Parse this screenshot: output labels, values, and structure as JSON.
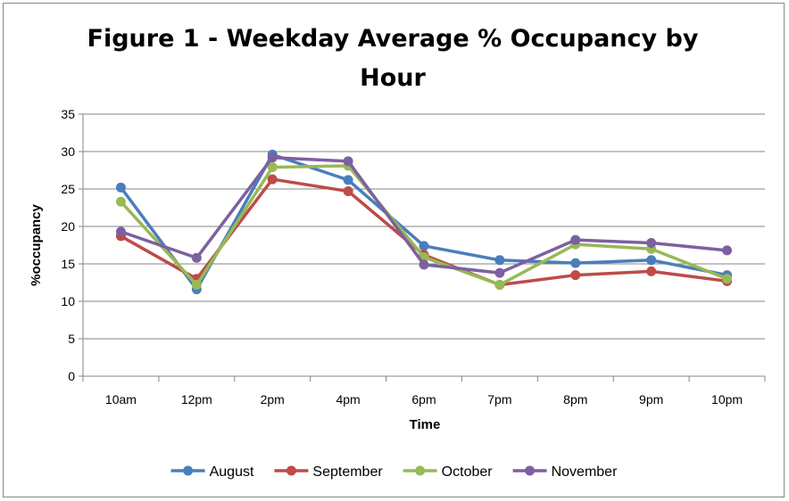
{
  "chart_data": {
    "type": "line",
    "title": "Figure 1 - Weekday Average % Occupancy by Hour",
    "xlabel": "Time",
    "ylabel": "%occupancy",
    "ylim": [
      0,
      35
    ],
    "yticks": [
      0,
      5,
      10,
      15,
      20,
      25,
      30,
      35
    ],
    "grid": true,
    "legend_position": "bottom",
    "categories": [
      "10am",
      "12pm",
      "2pm",
      "4pm",
      "6pm",
      "7pm",
      "8pm",
      "9pm",
      "10pm"
    ],
    "series": [
      {
        "name": "August",
        "color": "#4a7ebb",
        "values": [
          25.2,
          11.6,
          29.6,
          26.2,
          17.4,
          15.5,
          15.1,
          15.5,
          13.5
        ]
      },
      {
        "name": "September",
        "color": "#be4b48",
        "values": [
          18.7,
          13.0,
          26.3,
          24.7,
          16.2,
          12.2,
          13.5,
          14.0,
          12.7
        ]
      },
      {
        "name": "October",
        "color": "#98b954",
        "values": [
          23.3,
          12.2,
          27.9,
          28.1,
          15.9,
          12.2,
          17.6,
          17.0,
          13.0
        ]
      },
      {
        "name": "November",
        "color": "#7d60a0",
        "values": [
          19.3,
          15.8,
          29.2,
          28.7,
          14.9,
          13.8,
          18.2,
          17.8,
          16.8
        ]
      }
    ]
  }
}
